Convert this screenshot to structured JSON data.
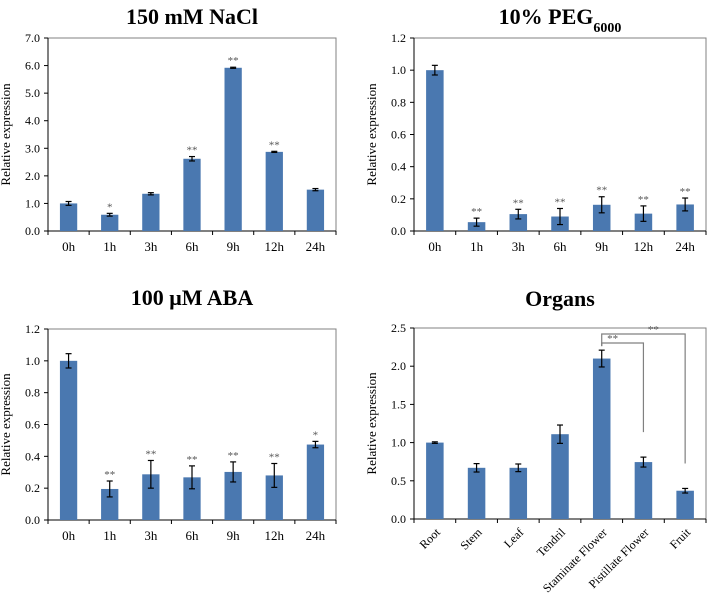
{
  "colors": {
    "bar": "#4a78b0",
    "error": "#000000",
    "sig": "#555555",
    "axis": "#808080"
  },
  "chart_data": [
    {
      "type": "bar",
      "title": "150 mM NaCl",
      "ylabel": "Relative expression",
      "ylim": [
        0,
        7
      ],
      "yticks": [
        "0.0",
        "1.0",
        "2.0",
        "3.0",
        "4.0",
        "5.0",
        "6.0",
        "7.0"
      ],
      "ytick_step": 1,
      "categories": [
        "0h",
        "1h",
        "3h",
        "6h",
        "9h",
        "12h",
        "24h"
      ],
      "values": [
        1.0,
        0.59,
        1.35,
        2.62,
        5.92,
        2.87,
        1.5
      ],
      "errors": [
        0.07,
        0.05,
        0.04,
        0.08,
        0.02,
        0.02,
        0.04
      ],
      "significance": [
        "",
        "*",
        "",
        "**",
        "**",
        "**",
        ""
      ]
    },
    {
      "type": "bar",
      "title": "10% PEG",
      "title_sub": "6000",
      "ylabel": "Relative expression",
      "ylim": [
        0,
        1.2
      ],
      "yticks": [
        "0.0",
        "0.2",
        "0.4",
        "0.6",
        "0.8",
        "1.0",
        "1.2"
      ],
      "ytick_step": 0.2,
      "categories": [
        "0h",
        "1h",
        "3h",
        "6h",
        "9h",
        "12h",
        "24h"
      ],
      "values": [
        1.0,
        0.055,
        0.105,
        0.09,
        0.163,
        0.108,
        0.165
      ],
      "errors": [
        0.03,
        0.025,
        0.03,
        0.05,
        0.05,
        0.048,
        0.04
      ],
      "significance": [
        "",
        "**",
        "**",
        "**",
        "**",
        "**",
        "**"
      ]
    },
    {
      "type": "bar",
      "title": "100 μM ABA",
      "ylabel": "Relative expression",
      "ylim": [
        0,
        1.2
      ],
      "yticks": [
        "0.0",
        "0.2",
        "0.4",
        "0.6",
        "0.8",
        "1.0",
        "1.2"
      ],
      "ytick_step": 0.2,
      "categories": [
        "0h",
        "1h",
        "3h",
        "6h",
        "9h",
        "12h",
        "24h"
      ],
      "values": [
        1.0,
        0.195,
        0.287,
        0.268,
        0.302,
        0.28,
        0.474
      ],
      "errors": [
        0.045,
        0.05,
        0.087,
        0.072,
        0.063,
        0.075,
        0.02
      ],
      "significance": [
        "",
        "**",
        "**",
        "**",
        "**",
        "**",
        "*"
      ]
    },
    {
      "type": "bar",
      "title": "Organs",
      "ylabel": "Relative expression",
      "ylim": [
        0,
        2.5
      ],
      "yticks": [
        "0.0",
        "0.5",
        "1.0",
        "1.5",
        "2.0",
        "2.5"
      ],
      "ytick_step": 0.5,
      "categories": [
        "Root",
        "Stem",
        "Leaf",
        "Tendril",
        "Staminate Flower",
        "Pistillate Flower",
        "Fruit"
      ],
      "values": [
        1.0,
        0.67,
        0.67,
        1.11,
        2.1,
        0.745,
        0.37
      ],
      "errors": [
        0.01,
        0.055,
        0.05,
        0.12,
        0.11,
        0.065,
        0.03
      ],
      "significance": [
        "",
        "",
        "",
        "",
        "",
        "",
        ""
      ],
      "brackets": [
        {
          "from": "Staminate Flower",
          "to": "Pistillate Flower",
          "label": "**"
        },
        {
          "from": "Staminate Flower",
          "to": "Fruit",
          "label": "**"
        }
      ]
    }
  ]
}
